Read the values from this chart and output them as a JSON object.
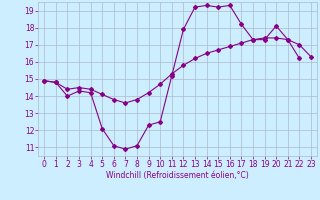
{
  "title": "",
  "xlabel": "Windchill (Refroidissement éolien,°C)",
  "bg_color": "#cceeff",
  "line_color": "#880088",
  "grid_color": "#aabbcc",
  "xlim": [
    -0.5,
    23.5
  ],
  "ylim": [
    10.5,
    19.5
  ],
  "xticks": [
    0,
    1,
    2,
    3,
    4,
    5,
    6,
    7,
    8,
    9,
    10,
    11,
    12,
    13,
    14,
    15,
    16,
    17,
    18,
    19,
    20,
    21,
    22,
    23
  ],
  "yticks": [
    11,
    12,
    13,
    14,
    15,
    16,
    17,
    18,
    19
  ],
  "line1_x": [
    0,
    1,
    2,
    3,
    4,
    5,
    6,
    7,
    8,
    9,
    10,
    11,
    12,
    13,
    14,
    15,
    16,
    17,
    18,
    19,
    20,
    21,
    22
  ],
  "line1_y": [
    14.9,
    14.8,
    14.0,
    14.3,
    14.2,
    12.1,
    11.1,
    10.9,
    11.1,
    12.3,
    12.5,
    15.2,
    17.9,
    19.2,
    19.3,
    19.2,
    19.3,
    18.2,
    17.3,
    17.3,
    18.1,
    17.3,
    16.2
  ],
  "line2_x": [
    0,
    1,
    2,
    3,
    4,
    5,
    6,
    7,
    8,
    9,
    10,
    11,
    12,
    13,
    14,
    15,
    16,
    17,
    18,
    19,
    20,
    21,
    22,
    23
  ],
  "line2_y": [
    14.9,
    14.8,
    14.4,
    14.5,
    14.4,
    14.1,
    13.8,
    13.6,
    13.8,
    14.2,
    14.7,
    15.3,
    15.8,
    16.2,
    16.5,
    16.7,
    16.9,
    17.1,
    17.3,
    17.4,
    17.4,
    17.3,
    17.0,
    16.3
  ],
  "tick_fontsize": 5.5,
  "xlabel_fontsize": 5.5,
  "marker_size": 2.0,
  "line_width": 0.8
}
